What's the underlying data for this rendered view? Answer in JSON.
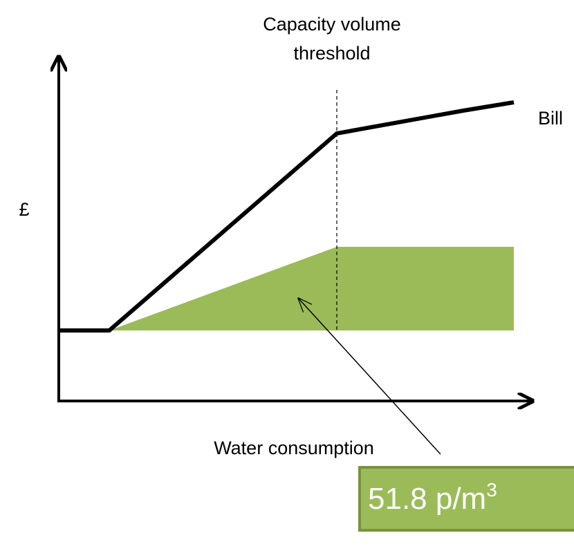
{
  "labels": {
    "threshold": [
      "Capacity volume",
      "threshold"
    ],
    "bill": "Bill",
    "currency": "£",
    "x_axis": "Water consumption"
  },
  "price_box": {
    "text": "51.8 p/m",
    "superscript": "3"
  }
}
